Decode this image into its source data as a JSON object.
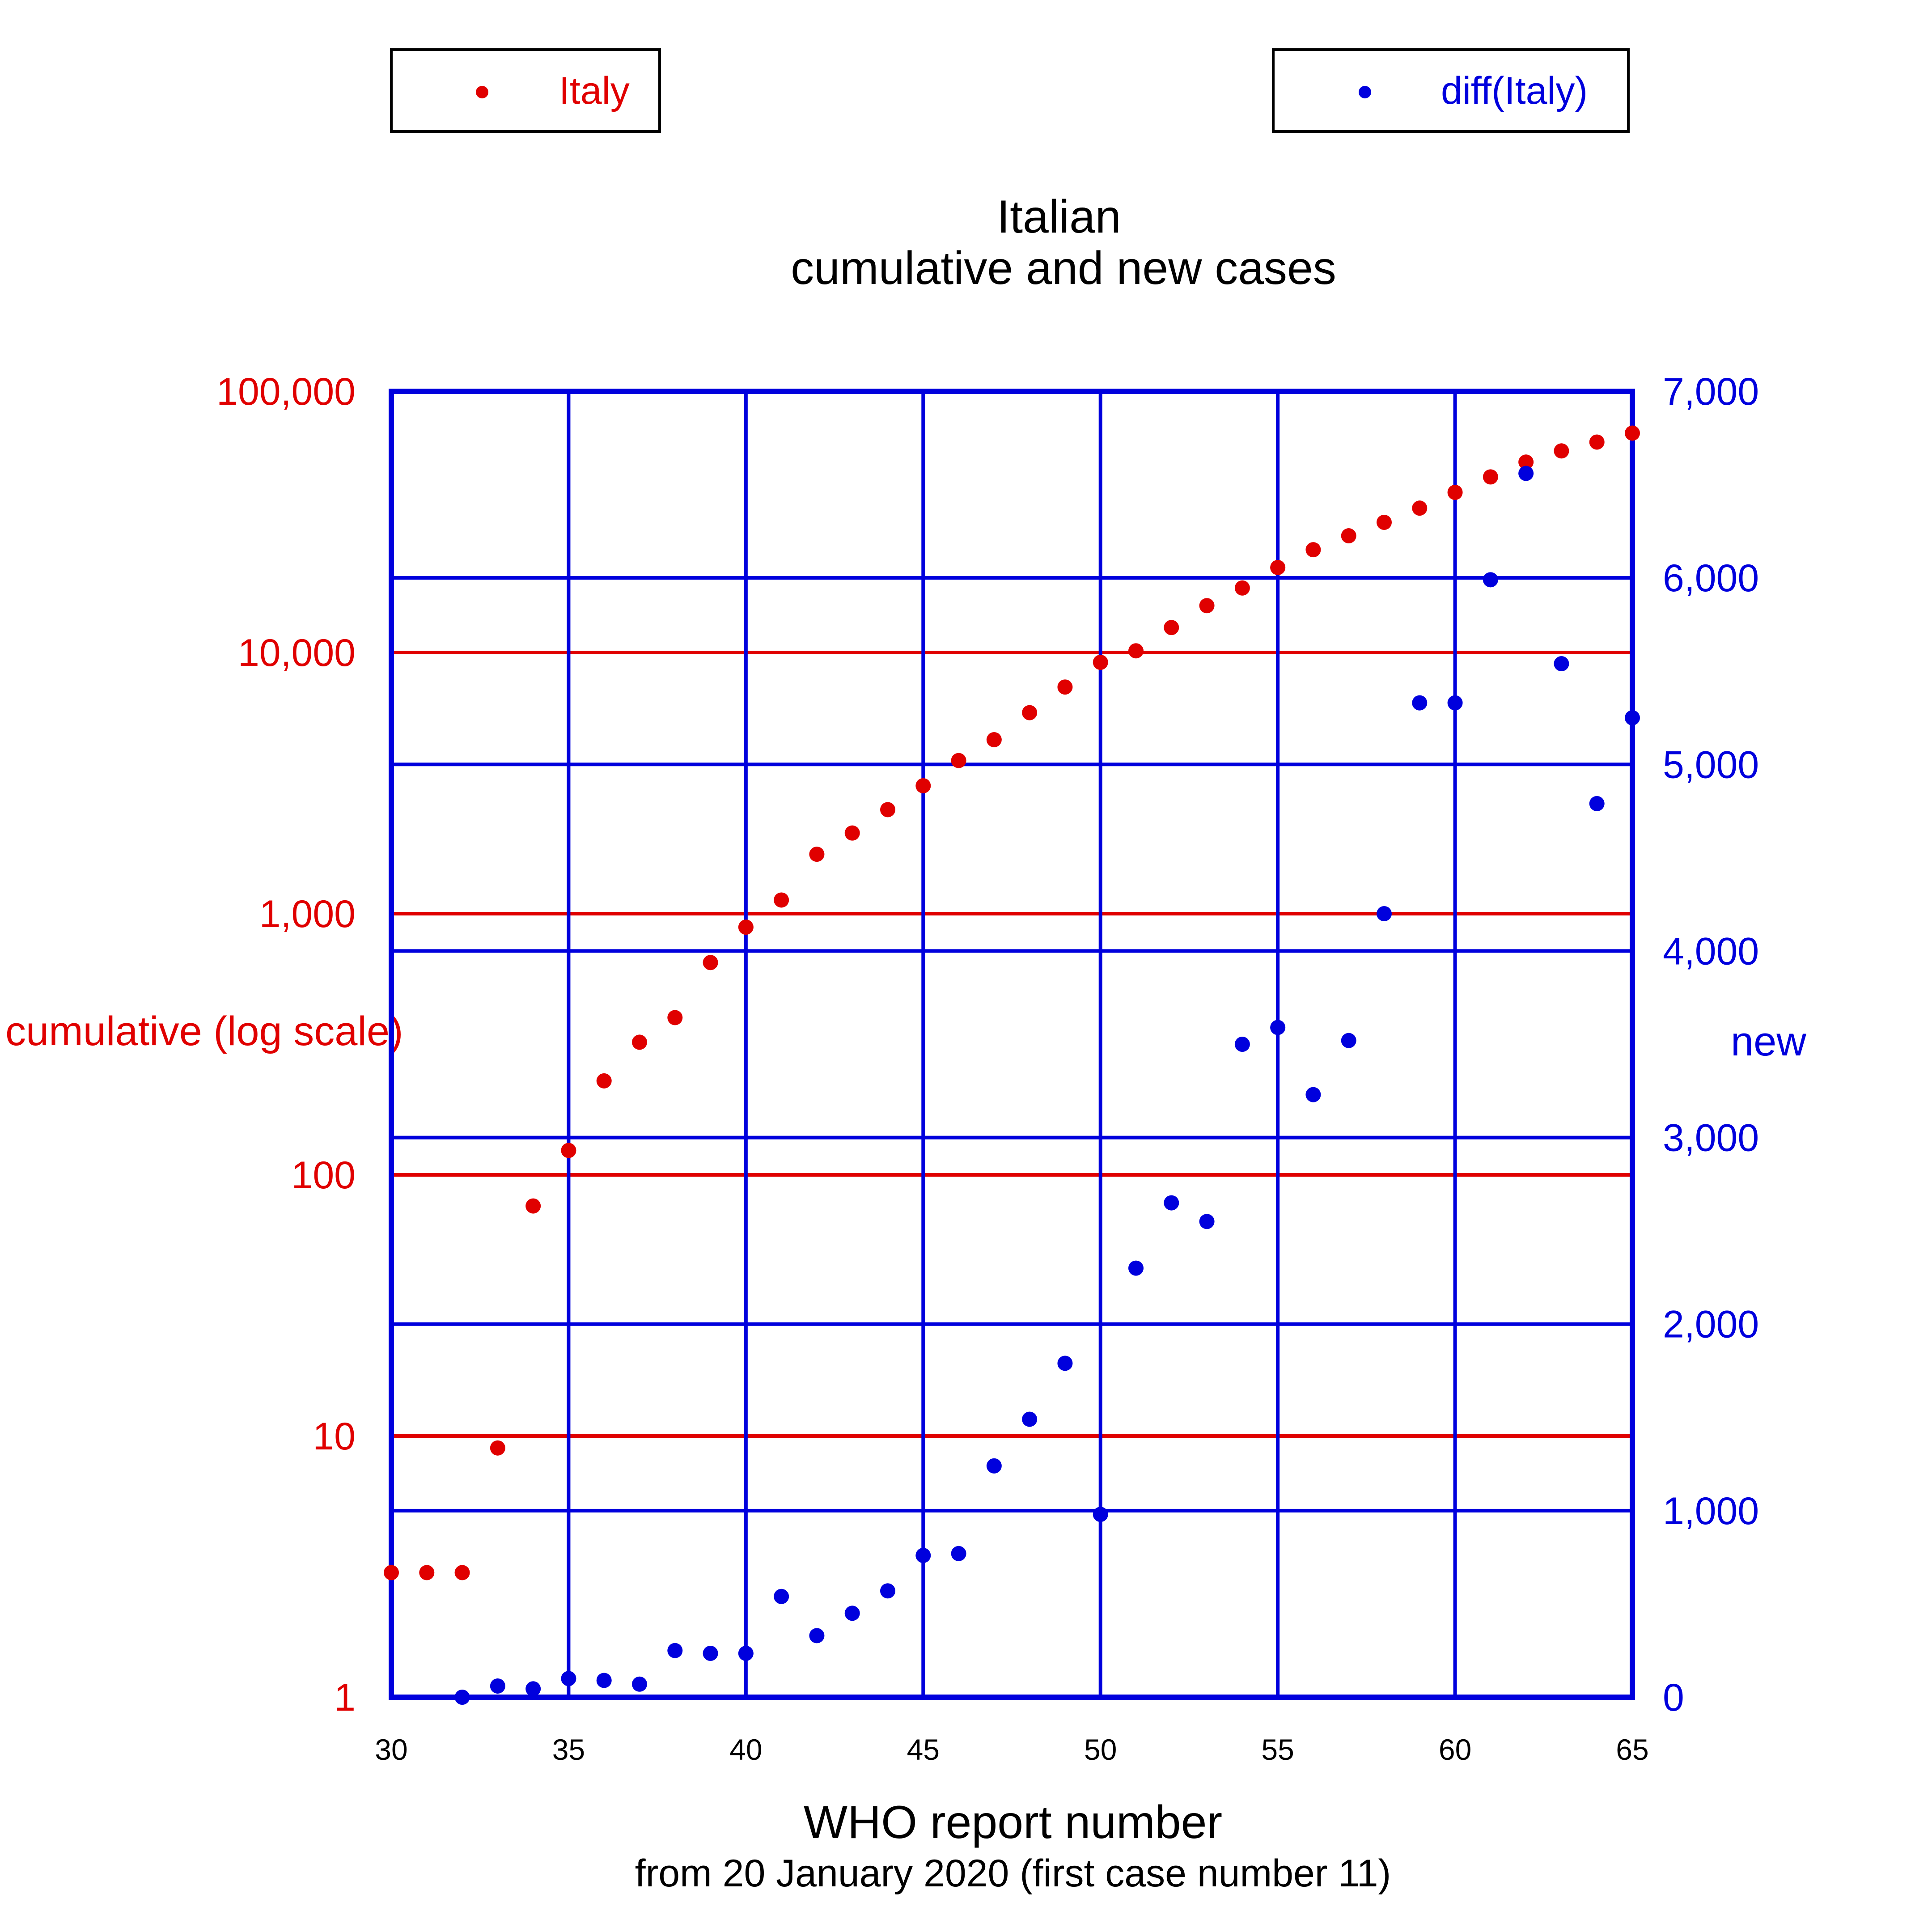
{
  "chart_data": {
    "type": "scatter",
    "title": "Italian",
    "subtitle": "cumulative and new cases",
    "xlabel": "WHO report number",
    "xsublabel": "from 20 January 2020 (first case number 11)",
    "ylabel_left": "cumulative (log scale)",
    "ylabel_right": "new",
    "xlim": [
      30,
      65
    ],
    "x_ticks": [
      30,
      35,
      40,
      45,
      50,
      55,
      60,
      65
    ],
    "x_tick_labels": [
      "30",
      "35",
      "40",
      "45",
      "50",
      "55",
      "60",
      "65"
    ],
    "y_left": {
      "scale": "log",
      "lim": [
        1,
        100000
      ],
      "ticks": [
        1,
        10,
        100,
        1000,
        10000,
        100000
      ],
      "tick_labels": [
        "1",
        "10",
        "100",
        "1,000",
        "10,000",
        "100,000"
      ],
      "color": "#e00000"
    },
    "y_right": {
      "scale": "linear",
      "lim": [
        0,
        7000
      ],
      "ticks": [
        0,
        1000,
        2000,
        3000,
        4000,
        5000,
        6000,
        7000
      ],
      "tick_labels": [
        "0",
        "1,000",
        "2,000",
        "3,000",
        "4,000",
        "5,000",
        "6,000",
        "7,000"
      ],
      "color": "#0000dd"
    },
    "grid": true,
    "legend_placement": "top",
    "series": [
      {
        "name": "Italy",
        "axis": "left",
        "color": "#e00000",
        "x": [
          30,
          31,
          32,
          33,
          34,
          35,
          36,
          37,
          38,
          39,
          40,
          41,
          42,
          43,
          44,
          45,
          46,
          47,
          48,
          49,
          50,
          51,
          52,
          53,
          54,
          55,
          56,
          57,
          58,
          59,
          60,
          61,
          62,
          63,
          64,
          65
        ],
        "y": [
          3,
          3,
          3,
          9,
          76,
          124,
          229,
          322,
          400,
          650,
          888,
          1128,
          1689,
          2036,
          2502,
          3089,
          3858,
          4636,
          5883,
          7375,
          9172,
          10149,
          12462,
          15113,
          17660,
          21157,
          24747,
          27980,
          31506,
          35713,
          41035,
          47021,
          53578,
          59138,
          63927,
          69176
        ]
      },
      {
        "name": "diff(Italy)",
        "axis": "right",
        "color": "#0000dd",
        "x": [
          32,
          33,
          34,
          35,
          36,
          37,
          38,
          39,
          40,
          41,
          42,
          43,
          44,
          45,
          46,
          47,
          48,
          49,
          50,
          51,
          52,
          53,
          54,
          55,
          56,
          57,
          58,
          59,
          60,
          61,
          62,
          63,
          64,
          65
        ],
        "y": [
          0,
          60,
          45,
          100,
          90,
          70,
          250,
          235,
          235,
          540,
          330,
          450,
          570,
          760,
          770,
          1240,
          1490,
          1790,
          980,
          2300,
          2650,
          2550,
          3500,
          3590,
          3230,
          3520,
          4200,
          5330,
          5330,
          5990,
          6560,
          5540,
          4790,
          5250
        ]
      }
    ]
  }
}
